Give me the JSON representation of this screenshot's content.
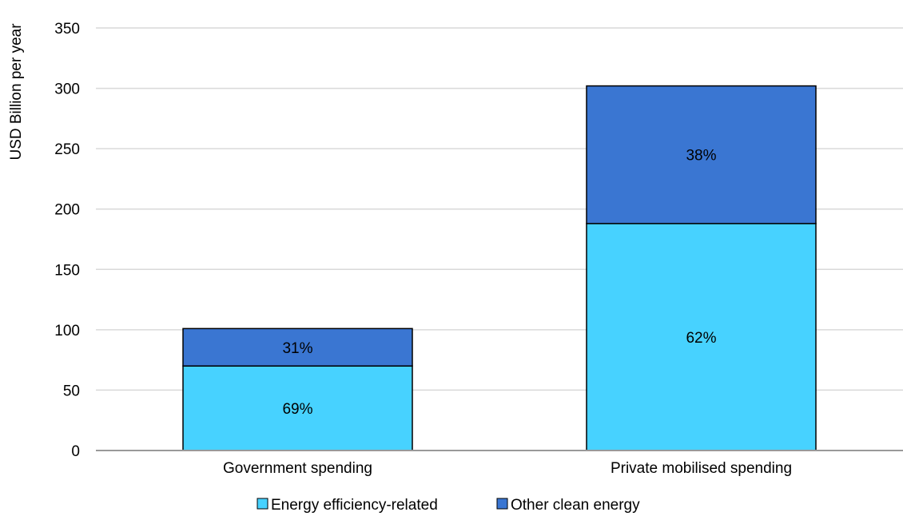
{
  "chart_data": {
    "type": "bar",
    "stacked": true,
    "title": "",
    "xlabel": "",
    "ylabel": "USD Billion per year",
    "ylim": [
      0,
      350
    ],
    "yticks": [
      0,
      50,
      100,
      150,
      200,
      250,
      300,
      350
    ],
    "grid": true,
    "legend_position": "bottom",
    "categories": [
      "Government spending",
      "Private mobilised spending"
    ],
    "series": [
      {
        "name": "Energy efficiency-related",
        "color": "#47D2FF",
        "values": [
          70,
          188
        ],
        "labels": [
          "69%",
          "62%"
        ]
      },
      {
        "name": "Other clean energy",
        "color": "#3A76D2",
        "values": [
          31,
          114
        ],
        "labels": [
          "31%",
          "38%"
        ]
      }
    ]
  }
}
